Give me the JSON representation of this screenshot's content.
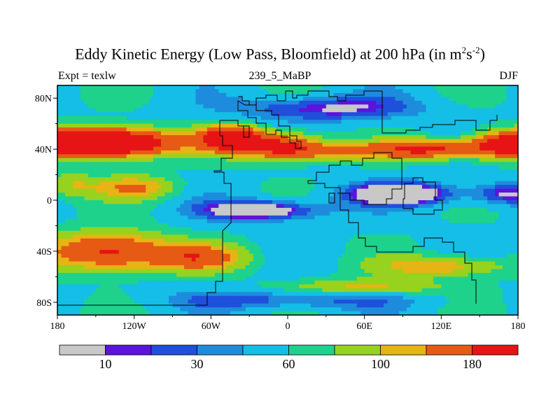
{
  "chart_data": {
    "type": "heatmap",
    "title_main": "Eddy Kinetic Energy (Low Pass, Bloomfield) at 200 hPa (in m",
    "title_sup1": "2",
    "title_mid": "s",
    "title_sup2": "-2",
    "title_end": ")",
    "subtitle_left": "Expt = texlw",
    "subtitle_center": "239_5_MaBP",
    "subtitle_right": "DJF",
    "projection": "cylindrical equidistant",
    "xlim": [
      -180,
      180
    ],
    "ylim": [
      -90,
      90
    ],
    "x_ticks": [
      {
        "value": -180,
        "label": "180"
      },
      {
        "value": -120,
        "label": "120W"
      },
      {
        "value": -60,
        "label": "60W"
      },
      {
        "value": 0,
        "label": "0"
      },
      {
        "value": 60,
        "label": "60E"
      },
      {
        "value": 120,
        "label": "120E"
      },
      {
        "value": 180,
        "label": "180"
      }
    ],
    "y_ticks": [
      {
        "value": 80,
        "label": "80N"
      },
      {
        "value": 40,
        "label": "40N"
      },
      {
        "value": 0,
        "label": "0"
      },
      {
        "value": -40,
        "label": "40S"
      },
      {
        "value": -80,
        "label": "80S"
      }
    ],
    "contour_levels": [
      5,
      10,
      20,
      30,
      45,
      60,
      80,
      100,
      140,
      180
    ],
    "colorbar": {
      "colors": [
        "#c8c8c8",
        "#5a14dc",
        "#1e50dc",
        "#1e8cdc",
        "#14bee6",
        "#1ed28c",
        "#96d21e",
        "#e6b414",
        "#e65a14",
        "#e61414"
      ],
      "labels": [
        {
          "after_bin": 1,
          "text": "10"
        },
        {
          "after_bin": 3,
          "text": "30"
        },
        {
          "after_bin": 5,
          "text": "60"
        },
        {
          "after_bin": 7,
          "text": "100"
        },
        {
          "after_bin": 9,
          "text": "180"
        }
      ]
    }
  }
}
